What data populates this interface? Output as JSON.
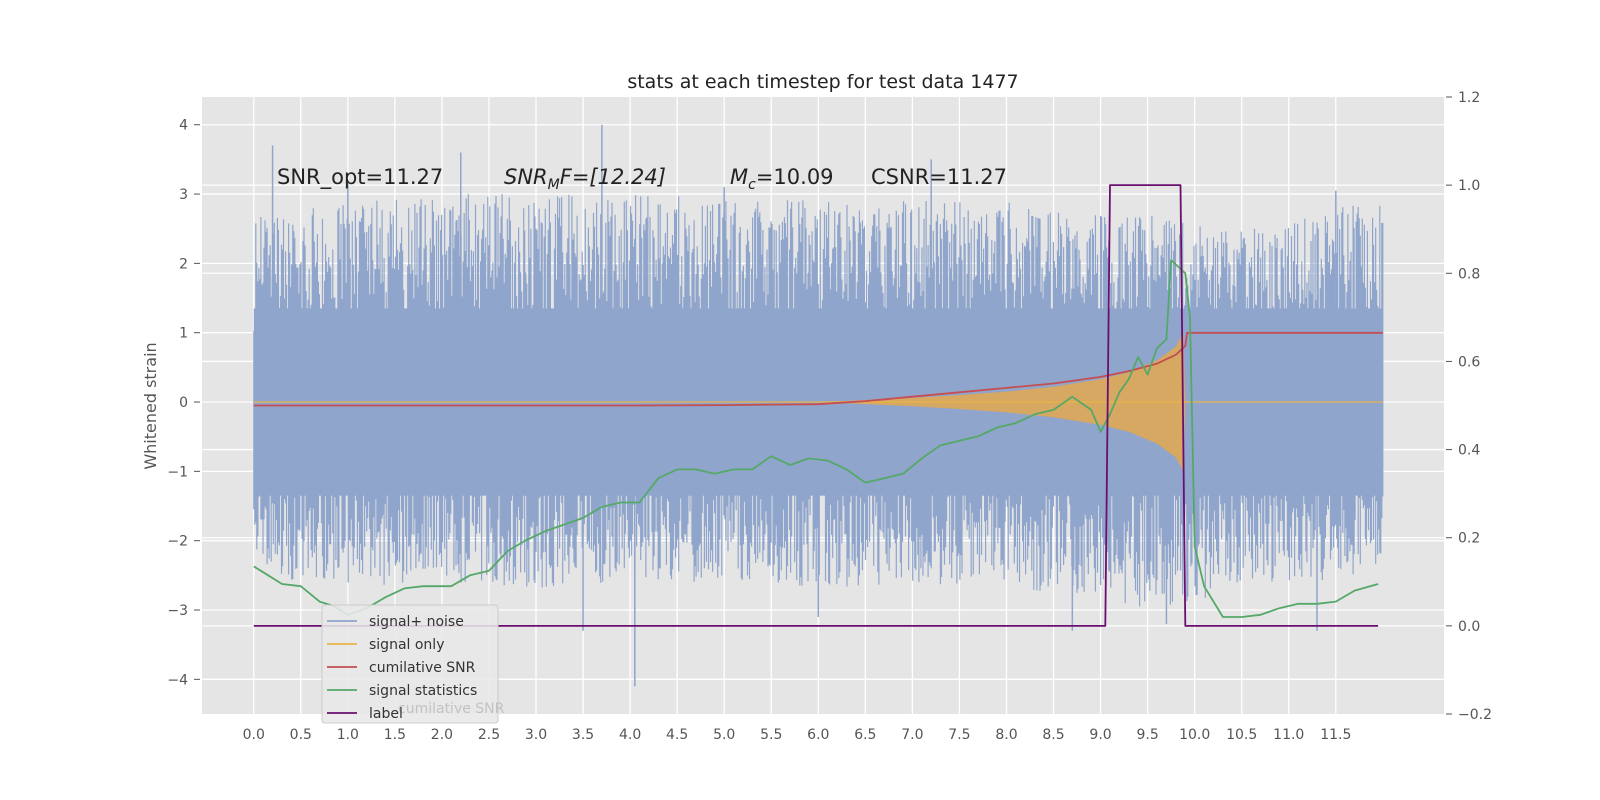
{
  "chart_data": {
    "type": "line",
    "title": "stats at each timestep for test data 1477",
    "ylabel": "Whitened strain",
    "xlabel": "",
    "xlim": [
      -0.55,
      12.65
    ],
    "ylim": [
      -4.5,
      4.4
    ],
    "y2lim": [
      -0.2,
      1.2
    ],
    "x_ticks": [
      "0.0",
      "0.5",
      "1.0",
      "1.5",
      "2.0",
      "2.5",
      "3.0",
      "3.5",
      "4.0",
      "4.5",
      "5.0",
      "5.5",
      "6.0",
      "6.5",
      "7.0",
      "7.5",
      "8.0",
      "8.5",
      "9.0",
      "9.5",
      "10.0",
      "10.5",
      "11.0",
      "11.5"
    ],
    "y_ticks": [
      "4",
      "3",
      "2",
      "1",
      "0",
      "−1",
      "−2",
      "−3",
      "−4"
    ],
    "y2_ticks": [
      "1.2",
      "1.0",
      "0.8",
      "0.6",
      "0.4",
      "0.2",
      "0.0",
      "−0.2"
    ],
    "grid": true,
    "legend_position": "lower-left",
    "annotations": [
      {
        "text": "SNR_opt=11.27",
        "x": 0.2,
        "y": 3.15
      },
      {
        "text": "SNR_MF=[12.24]",
        "x": 2.6,
        "y": 3.15
      },
      {
        "text": "M_c=10.09",
        "x": 5.0,
        "y": 3.15
      },
      {
        "text": "CSNR=11.27",
        "x": 6.5,
        "y": 3.15
      }
    ],
    "annot_parts": {
      "snr_opt": "SNR_opt=11.27",
      "snr_mf_base": "SNR",
      "snr_mf_sub": "M",
      "snr_mf_rest": "F=[12.24]",
      "mc_base": "M",
      "mc_sub": "c",
      "mc_rest": "=10.09",
      "csnr": "CSNR=11.27"
    },
    "series": [
      {
        "name": "signal+ noise",
        "axis": "left",
        "color": "#8fa5cb",
        "x_range": [
          0.0,
          12.0
        ],
        "typical_range": [
          -2.6,
          3.1
        ],
        "envelope": {
          "x": [
            0.0,
            1.0,
            2.0,
            3.0,
            4.0,
            5.0,
            6.0,
            7.0,
            8.0,
            9.0,
            9.5,
            9.9,
            10.5,
            11.0,
            11.5,
            12.0
          ],
          "upper": [
            2.7,
            2.9,
            3.0,
            3.0,
            3.0,
            3.0,
            2.9,
            2.9,
            2.9,
            2.7,
            2.7,
            2.6,
            2.5,
            2.6,
            2.8,
            2.9
          ],
          "lower": [
            -2.5,
            -2.7,
            -2.6,
            -2.7,
            -2.6,
            -2.6,
            -2.7,
            -2.6,
            -2.7,
            -2.8,
            -3.0,
            -2.9,
            -2.7,
            -2.6,
            -2.6,
            -2.3
          ]
        },
        "spikes": [
          {
            "x": 0.2,
            "y": 3.7
          },
          {
            "x": 1.0,
            "y": 3.2
          },
          {
            "x": 2.2,
            "y": 3.6
          },
          {
            "x": 3.7,
            "y": 4.0
          },
          {
            "x": 5.0,
            "y": 3.1
          },
          {
            "x": 7.2,
            "y": 3.5
          },
          {
            "x": 11.5,
            "y": 3.05
          },
          {
            "x": 4.05,
            "y": -4.1
          },
          {
            "x": 3.5,
            "y": -3.3
          },
          {
            "x": 8.7,
            "y": -3.3
          },
          {
            "x": 9.7,
            "y": -3.2
          },
          {
            "x": 11.3,
            "y": -3.3
          },
          {
            "x": 6.0,
            "y": -3.1
          }
        ]
      },
      {
        "name": "signal only",
        "axis": "left",
        "color": "#e9b54a",
        "x_range": [
          0.0,
          12.0
        ],
        "envelope_fill_color": "#dba85c",
        "envelope": {
          "x": [
            6.0,
            6.5,
            7.0,
            7.5,
            8.0,
            8.5,
            9.0,
            9.3,
            9.6,
            9.8,
            9.88,
            9.9,
            12.0
          ],
          "upper": [
            0.0,
            0.03,
            0.06,
            0.1,
            0.15,
            0.22,
            0.33,
            0.43,
            0.6,
            0.8,
            1.0,
            0.0,
            0.0
          ],
          "lower": [
            0.0,
            -0.03,
            -0.06,
            -0.1,
            -0.15,
            -0.22,
            -0.33,
            -0.43,
            -0.6,
            -0.8,
            -1.0,
            0.0,
            0.0
          ]
        }
      },
      {
        "name": "cumilative SNR",
        "axis": "right",
        "color": "#c44e52",
        "x": [
          0.0,
          1.0,
          2.0,
          3.0,
          4.0,
          5.0,
          5.5,
          6.0,
          6.5,
          7.0,
          7.5,
          8.0,
          8.5,
          9.0,
          9.3,
          9.6,
          9.8,
          9.9,
          9.92,
          10.5,
          11.0,
          11.5,
          12.0
        ],
        "values": [
          0.5,
          0.5,
          0.5,
          0.5,
          0.5,
          0.501,
          0.502,
          0.503,
          0.51,
          0.52,
          0.53,
          0.54,
          0.55,
          0.565,
          0.578,
          0.595,
          0.615,
          0.635,
          0.665,
          0.665,
          0.665,
          0.665,
          0.665
        ]
      },
      {
        "name": "signal statistics",
        "axis": "right",
        "color": "#55a868",
        "x": [
          0.0,
          0.15,
          0.3,
          0.5,
          0.7,
          0.85,
          1.0,
          1.2,
          1.4,
          1.6,
          1.8,
          2.0,
          2.1,
          2.3,
          2.5,
          2.7,
          2.9,
          3.1,
          3.3,
          3.5,
          3.7,
          3.9,
          4.1,
          4.3,
          4.5,
          4.7,
          4.9,
          5.1,
          5.3,
          5.5,
          5.7,
          5.9,
          6.1,
          6.3,
          6.5,
          6.7,
          6.9,
          7.1,
          7.3,
          7.5,
          7.7,
          7.9,
          8.1,
          8.3,
          8.5,
          8.7,
          8.9,
          9.0,
          9.1,
          9.2,
          9.3,
          9.4,
          9.5,
          9.6,
          9.7,
          9.75,
          9.8,
          9.9,
          9.95,
          10.0,
          10.1,
          10.3,
          10.5,
          10.7,
          10.9,
          11.1,
          11.3,
          11.5,
          11.7,
          11.95
        ],
        "values": [
          0.135,
          0.115,
          0.095,
          0.09,
          0.055,
          0.045,
          0.025,
          0.04,
          0.065,
          0.085,
          0.09,
          0.09,
          0.09,
          0.115,
          0.125,
          0.17,
          0.195,
          0.215,
          0.23,
          0.245,
          0.27,
          0.28,
          0.28,
          0.335,
          0.355,
          0.355,
          0.345,
          0.355,
          0.355,
          0.385,
          0.365,
          0.38,
          0.375,
          0.355,
          0.325,
          0.335,
          0.345,
          0.38,
          0.41,
          0.42,
          0.43,
          0.45,
          0.46,
          0.48,
          0.49,
          0.52,
          0.49,
          0.44,
          0.48,
          0.53,
          0.56,
          0.61,
          0.57,
          0.63,
          0.65,
          0.83,
          0.82,
          0.8,
          0.7,
          0.18,
          0.09,
          0.02,
          0.02,
          0.025,
          0.04,
          0.05,
          0.05,
          0.055,
          0.08,
          0.095
        ]
      },
      {
        "name": "label",
        "axis": "right",
        "color": "#6a0f6f",
        "x": [
          0.0,
          9.05,
          9.1,
          9.85,
          9.9,
          11.95
        ],
        "values": [
          0.0,
          0.0,
          1.0,
          1.0,
          0.0,
          0.0
        ]
      }
    ],
    "legend": [
      "signal+ noise",
      "signal only",
      "cumilative SNR",
      "signal statistics",
      "label"
    ],
    "legend_ghost_text": "cumilative SNR"
  }
}
